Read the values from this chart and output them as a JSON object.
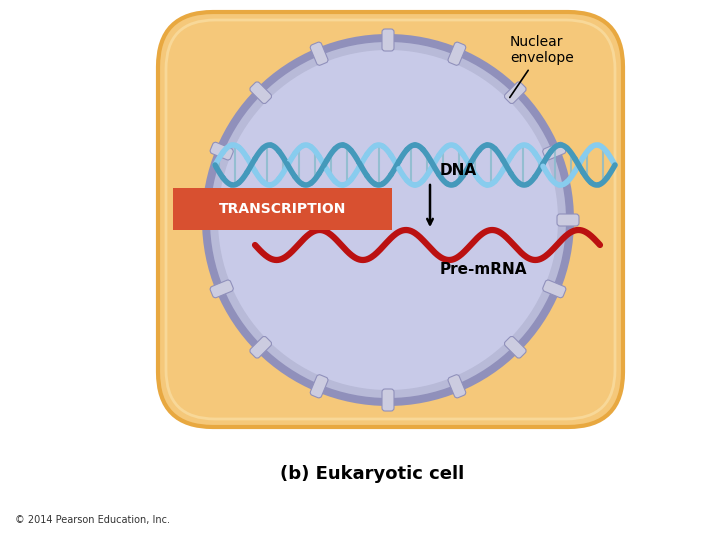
{
  "fig_width": 7.2,
  "fig_height": 5.4,
  "dpi": 100,
  "bg_color": "#FFFFFF",
  "cell_color": "#F5C87A",
  "cell_edge_color": "#E8A840",
  "cell_edge_inner": "#F0B860",
  "nucleus_fill_color": "#C8CAE8",
  "nucleus_ring_color": "#9090BB",
  "nucleus_ring_inner": "#B8BAD8",
  "pore_fill": "#CCCCE0",
  "pore_edge": "#9090BB",
  "transcription_box_color": "#D85030",
  "transcription_text_color": "#FFFFFF",
  "transcription_text": "TRANSCRIPTION",
  "dna_color_dark": "#4499BB",
  "dna_color_light": "#88CCEE",
  "mrna_color": "#BB1111",
  "label_nuclear_envelope": "Nuclear\nenvelope",
  "label_dna": "DNA",
  "label_premrna": "Pre-mRNA",
  "label_eukaryotic": "(b) Eukaryotic cell",
  "label_copyright": "© 2014 Pearson Education, Inc."
}
